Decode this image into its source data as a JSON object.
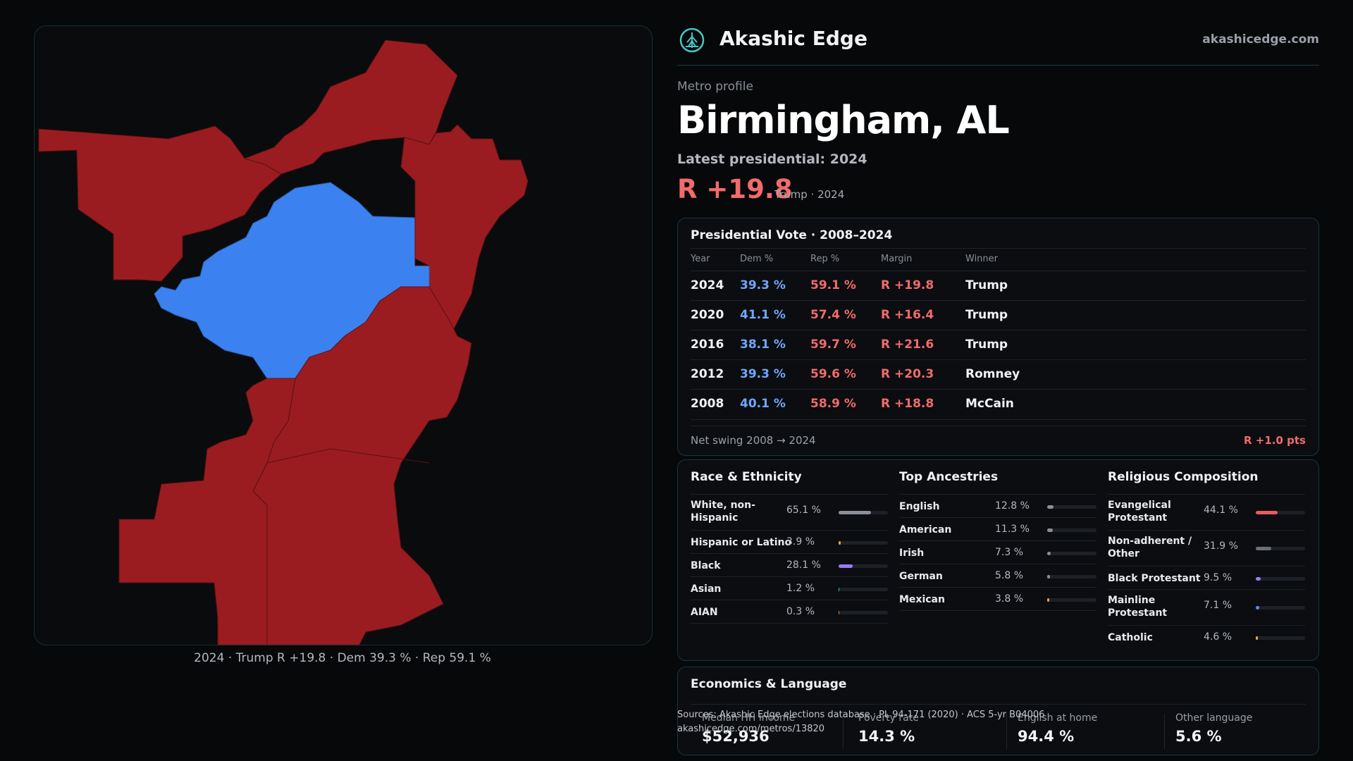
{
  "map": {
    "caption": "2024 · Trump R +19.8 · Dem 39.3 % · Rep 59.1 %",
    "rep_color": "#9b1c20",
    "dem_color": "#3b82f0"
  },
  "brand": {
    "name": "Akashic Edge",
    "domain": "akashicedge.com",
    "logo_icon": "tree-circle-icon"
  },
  "profile": {
    "eyebrow": "Metro profile",
    "title": "Birmingham, AL",
    "latest_label": "Latest presidential: 2024",
    "margin": "R +19.8",
    "margin_sub": "Trump · 2024"
  },
  "vote": {
    "title": "Presidential Vote · 2008–2024",
    "headers": [
      "Year",
      "Dem %",
      "Rep %",
      "Margin",
      "Winner"
    ],
    "rows": [
      {
        "year": "2024",
        "dem": "39.3 %",
        "rep": "59.1 %",
        "margin": "R +19.8",
        "winner": "Trump"
      },
      {
        "year": "2020",
        "dem": "41.1 %",
        "rep": "57.4 %",
        "margin": "R +16.4",
        "winner": "Trump"
      },
      {
        "year": "2016",
        "dem": "38.1 %",
        "rep": "59.7 %",
        "margin": "R +21.6",
        "winner": "Trump"
      },
      {
        "year": "2012",
        "dem": "39.3 %",
        "rep": "59.6 %",
        "margin": "R +20.3",
        "winner": "Romney"
      },
      {
        "year": "2008",
        "dem": "40.1 %",
        "rep": "58.9 %",
        "margin": "R +18.8",
        "winner": "McCain"
      }
    ],
    "swing_label": "Net swing 2008 → 2024",
    "swing_value": "R +1.0 pts"
  },
  "race": {
    "title": "Race & Ethnicity",
    "items": [
      {
        "name": "White, non-Hispanic",
        "pct": "65.1 %",
        "value": 65.1,
        "color": "#8a8f98"
      },
      {
        "name": "Hispanic or Latino",
        "pct": "3.9 %",
        "value": 3.9,
        "color": "#e2a33b"
      },
      {
        "name": "Black",
        "pct": "28.1 %",
        "value": 28.1,
        "color": "#9b7cf0"
      },
      {
        "name": "Asian",
        "pct": "1.2 %",
        "value": 1.2,
        "color": "#3bbfa5"
      },
      {
        "name": "AIAN",
        "pct": "0.3 %",
        "value": 0.3,
        "color": "#e0703b"
      }
    ]
  },
  "ancestry": {
    "title": "Top Ancestries",
    "items": [
      {
        "name": "English",
        "pct": "12.8 %",
        "value": 12.8,
        "color": "#8a8f98"
      },
      {
        "name": "American",
        "pct": "11.3 %",
        "value": 11.3,
        "color": "#8a8f98"
      },
      {
        "name": "Irish",
        "pct": "7.3 %",
        "value": 7.3,
        "color": "#8a8f98"
      },
      {
        "name": "German",
        "pct": "5.8 %",
        "value": 5.8,
        "color": "#8a8f98"
      },
      {
        "name": "Mexican",
        "pct": "3.8 %",
        "value": 3.8,
        "color": "#e2a33b"
      }
    ]
  },
  "religion": {
    "title": "Religious Composition",
    "items": [
      {
        "name": "Evangelical Protestant",
        "pct": "44.1 %",
        "value": 44.1,
        "color": "#e85a64"
      },
      {
        "name": "Non-adherent / Other",
        "pct": "31.9 %",
        "value": 31.9,
        "color": "#6b7078"
      },
      {
        "name": "Black Protestant",
        "pct": "9.5 %",
        "value": 9.5,
        "color": "#9b7cf0"
      },
      {
        "name": "Mainline Protestant",
        "pct": "7.1 %",
        "value": 7.1,
        "color": "#5b8cf0"
      },
      {
        "name": "Catholic",
        "pct": "4.6 %",
        "value": 4.6,
        "color": "#e2b33b"
      }
    ]
  },
  "econ": {
    "title": "Economics & Language",
    "items": [
      {
        "label": "Median HH income",
        "value": "$52,936"
      },
      {
        "label": "Poverty rate",
        "value": "14.3 %"
      },
      {
        "label": "English at home",
        "value": "94.4 %"
      },
      {
        "label": "Other language",
        "value": "5.6 %"
      }
    ]
  },
  "source": {
    "line1": "Sources: Akashic Edge elections database · PL 94-171 (2020) · ACS 5-yr B04006",
    "line2": "akashicedge.com/metros/13820"
  }
}
